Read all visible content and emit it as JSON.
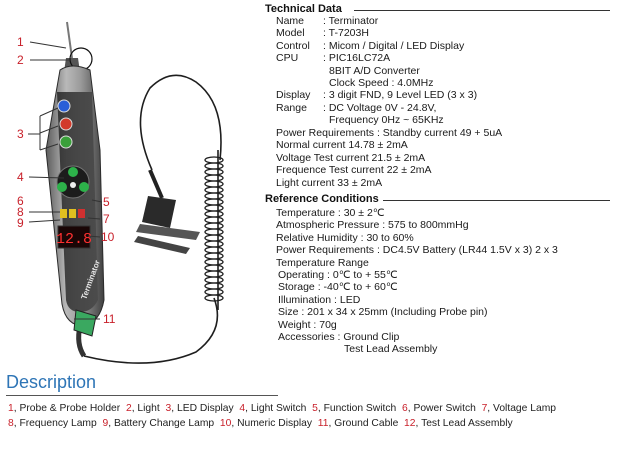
{
  "technical_data": {
    "title": "Technical Data",
    "rows": [
      {
        "label": "Name",
        "value": ": Terminator"
      },
      {
        "label": "Model",
        "value": ": T-7203H"
      },
      {
        "label": "Control",
        "value": ": Micom / Digital / LED Display"
      },
      {
        "label": "CPU",
        "value": ": PIC16LC72A"
      },
      {
        "label": "",
        "value": "8BIT A/D Converter"
      },
      {
        "label": "",
        "value": "Clock Speed : 4.0MHz"
      },
      {
        "label": "Display",
        "value": ": 3 digit FND, 9 Level LED (3 x 3)"
      },
      {
        "label": "Range",
        "value": ": DC Voltage 0V - 24.8V,"
      },
      {
        "label": "",
        "value": "Frequency 0Hz ~ 65KHz"
      }
    ],
    "extra": [
      "Power Requirements : Standby current 49 + 5uA",
      "Normal current  14.78 ± 2mA",
      "Voltage Test current  21.5 ± 2mA",
      "Frequence Test current  22 ± 2mA",
      "Light current 33 ± 2mA"
    ]
  },
  "reference_conditions": {
    "title": "Reference Conditions",
    "lines": [
      "Temperature : 30 ± 2℃",
      "Atmospheric Pressure : 575 to 800mmHg",
      "Relative Humidity : 30 to 60%",
      "Power Requirements : DC4.5V Battery (LR44 1.5V x 3) 2 x 3",
      "Temperature Range",
      "Operating : 0℃ to + 55℃",
      "Storage    : -40℃ to + 60℃",
      "Illumination  : LED",
      "Size : 201 x 34 x 25mm (Including Probe pin)",
      "Weight : 70g",
      "Accessories : Ground Clip",
      "Test Lead Assembly"
    ]
  },
  "callouts": [
    "1",
    "2",
    "3",
    "4",
    "5",
    "6",
    "7",
    "8",
    "9",
    "10",
    "11"
  ],
  "device": {
    "display_digits": "12.8",
    "brand": "Terminator"
  },
  "description": {
    "title": "Description",
    "line1": [
      {
        "n": "1",
        "t": "Probe & Probe Holder"
      },
      {
        "n": "2",
        "t": "Light"
      },
      {
        "n": "3",
        "t": "LED Display"
      },
      {
        "n": "4",
        "t": "Light Switch"
      },
      {
        "n": "5",
        "t": "Function Switch"
      },
      {
        "n": "6",
        "t": "Power Switch"
      },
      {
        "n": "7",
        "t": "Voltage Lamp"
      }
    ],
    "line2": [
      {
        "n": "8",
        "t": "Frequency Lamp"
      },
      {
        "n": "9",
        "t": "Battery Change Lamp"
      },
      {
        "n": "10",
        "t": "Numeric Display"
      },
      {
        "n": "11",
        "t": "Ground Cable"
      },
      {
        "n": "12",
        "t": "Test Lead Assembly"
      }
    ]
  }
}
